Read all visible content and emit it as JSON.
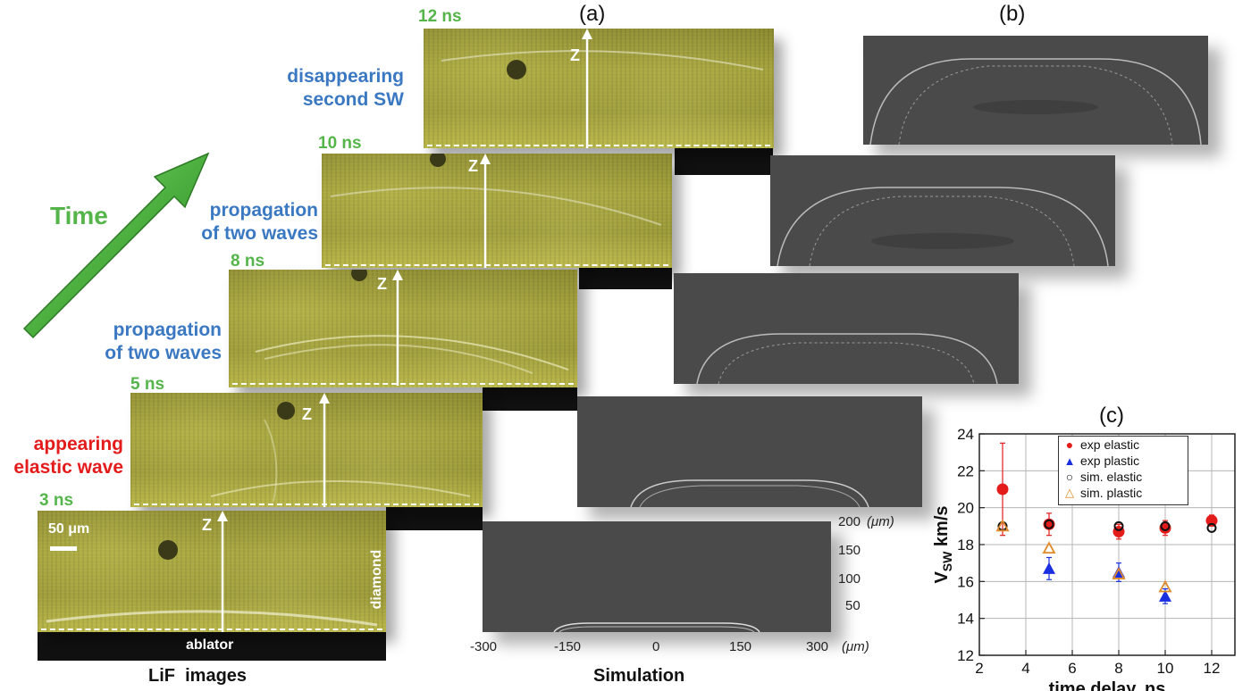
{
  "panels": {
    "a": "(a)",
    "b": "(b)",
    "c": "(c)"
  },
  "time_arrow_label": "Time",
  "lif_frames": [
    {
      "time": "3 ns",
      "z": "Z",
      "scale_bar": "50 μm",
      "right_label": "diamond",
      "bottom_label": "ablator"
    },
    {
      "time": "5 ns",
      "z": "Z",
      "annotation": [
        "appearing",
        "elastic wave"
      ],
      "annotation_color": "#e31b1b"
    },
    {
      "time": "8 ns",
      "z": "Z",
      "annotation": [
        "propagation",
        "of two waves"
      ],
      "annotation_color": "#3a78c2"
    },
    {
      "time": "10 ns",
      "z": "Z",
      "annotation": [
        "propagation",
        "of two waves"
      ],
      "annotation_color": "#3a78c2"
    },
    {
      "time": "12 ns",
      "z": "Z",
      "annotation": [
        "disappearing",
        "second SW"
      ],
      "annotation_color": "#3a78c2"
    }
  ],
  "captions": {
    "lif": "LiF  images",
    "simulation": "Simulation"
  },
  "sim_axes": {
    "x_ticks": [
      "-300",
      "-150",
      "0",
      "150",
      "300"
    ],
    "x_unit": "(μm)",
    "y_ticks": [
      "200",
      "150",
      "100",
      "50"
    ],
    "y_unit": "(μm)"
  },
  "colors": {
    "green": "#55b54a",
    "blue": "#3a78c2",
    "red": "#e31b1b",
    "orange": "#e08a2a"
  },
  "chart_data": {
    "type": "scatter",
    "title": "(c)",
    "xlabel": "time delay, ns",
    "ylabel": "V",
    "ylabel_sub": "SW",
    "ylabel_suffix": " km/s",
    "xlim": [
      2,
      13
    ],
    "ylim": [
      12,
      24
    ],
    "x_ticks": [
      2,
      4,
      6,
      8,
      10,
      12
    ],
    "y_ticks": [
      12,
      14,
      16,
      18,
      20,
      22,
      24
    ],
    "grid": true,
    "legend_position": "top-right",
    "series": [
      {
        "name": "exp elastic",
        "marker": "filled-circle",
        "color": "#e31b1b",
        "x": [
          3,
          5,
          8,
          10,
          12
        ],
        "y": [
          21.0,
          19.1,
          18.7,
          18.9,
          19.3
        ],
        "err": [
          2.5,
          0.6,
          0.4,
          0.4,
          0.3
        ]
      },
      {
        "name": "exp plastic",
        "marker": "filled-triangle",
        "color": "#1a2fe0",
        "x": [
          5,
          8,
          10
        ],
        "y": [
          16.7,
          16.5,
          15.2
        ],
        "err": [
          0.6,
          0.5,
          0.4
        ]
      },
      {
        "name": "sim. elastic",
        "marker": "open-circle",
        "color": "#111111",
        "x": [
          3,
          5,
          8,
          10,
          12
        ],
        "y": [
          19.0,
          19.1,
          19.0,
          19.0,
          18.9
        ]
      },
      {
        "name": "sim. plastic",
        "marker": "open-triangle",
        "color": "#e08a2a",
        "x": [
          3,
          5,
          8,
          10
        ],
        "y": [
          19.0,
          17.8,
          16.4,
          15.7
        ]
      }
    ]
  }
}
